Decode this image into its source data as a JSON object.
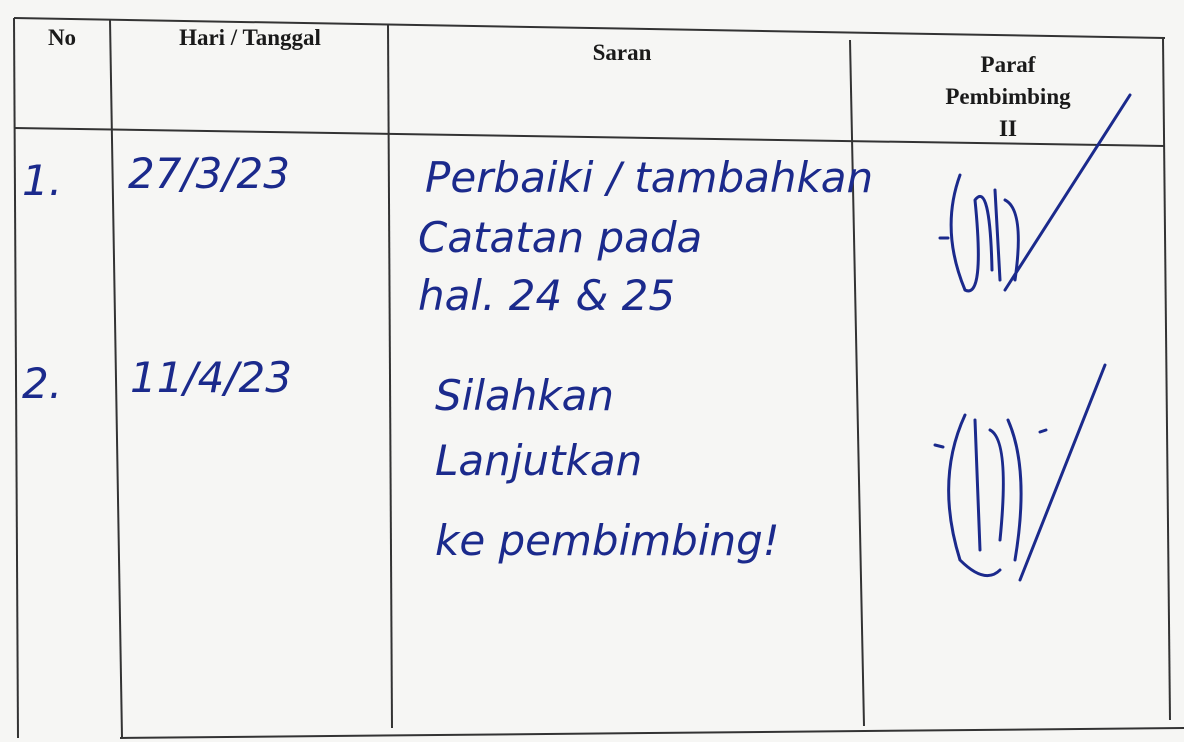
{
  "table": {
    "header": [
      "No",
      "Hari / Tanggal",
      "Saran",
      [
        "Paraf",
        "Pembimbing",
        "II"
      ]
    ],
    "rows": [
      {
        "no": "1.",
        "tanggal": "27/3/23",
        "saran": [
          "Perbaiki / tambahkan",
          "Catatan pada",
          "hal. 24 & 25"
        ]
      },
      {
        "no": "2.",
        "tanggal": "11/4/23",
        "saran": [
          "Silahkan",
          "Lanjutkan",
          "ke pembimbing!"
        ]
      }
    ]
  }
}
